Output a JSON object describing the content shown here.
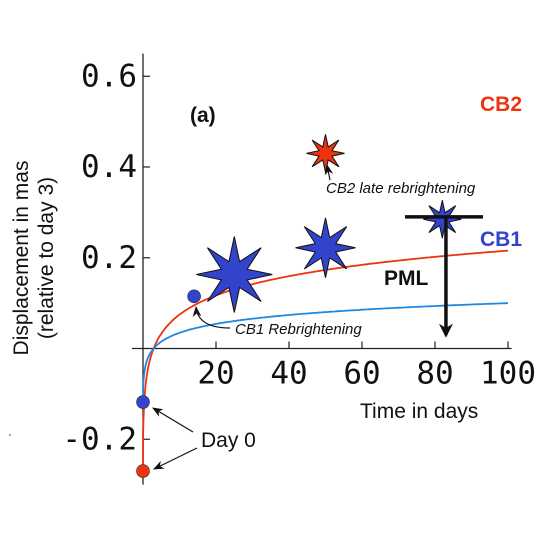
{
  "chart_data": {
    "type": "line",
    "panel_label": "(a)",
    "xlabel": "Time in days",
    "ylabel_line1": "Displacement in mas",
    "ylabel_line2": "(relative to day 3)",
    "xlim": [
      -3,
      101
    ],
    "ylim": [
      -0.3,
      0.65
    ],
    "x_ticks": [
      20,
      40,
      60,
      80,
      100
    ],
    "x_tick_labels": [
      "20",
      "40",
      "60",
      "80",
      "100"
    ],
    "y_ticks": [
      -0.2,
      0.2,
      0.4,
      0.6
    ],
    "y_tick_labels": [
      "-0.2",
      "0.2",
      "0.4",
      "0.6"
    ],
    "series": [
      {
        "name": "CB2",
        "color": "#ee3311",
        "curve": {
          "a": 0.0615,
          "b": 3,
          "t0": 0.1,
          "x_end": 100
        }
      },
      {
        "name": "CB1",
        "color": "#2288dd",
        "curve": {
          "a": 0.0285,
          "b": 3,
          "t0": 0.1,
          "x_end": 100
        }
      }
    ],
    "day0_points": [
      {
        "series": "CB1",
        "x": 0,
        "y": -0.118,
        "color": "#3344cc"
      },
      {
        "series": "CB2",
        "x": 0,
        "y": -0.27,
        "color": "#ee3311"
      }
    ],
    "cb1_rebrightening_point": {
      "x": 14,
      "y": 0.115,
      "color": "#3344cc"
    },
    "star_markers": [
      {
        "x": 25,
        "y": 0.163,
        "size": "large",
        "color": "#3344cc"
      },
      {
        "x": 50,
        "y": 0.222,
        "size": "medium",
        "color": "#3344cc"
      },
      {
        "x": 82,
        "y": 0.285,
        "size": "small",
        "color": "#3344cc"
      },
      {
        "x": 50,
        "y": 0.43,
        "size": "small",
        "color": "#ee3311"
      }
    ],
    "annotations": {
      "cb2_late": "CB2 late rebrightening",
      "cb1_rebrightening": "CB1 Rebrightening",
      "day0": "Day 0",
      "pml": "PML"
    },
    "pml_arrow": {
      "x": 83,
      "y_from": 0.29,
      "y_to": 0.03
    }
  }
}
